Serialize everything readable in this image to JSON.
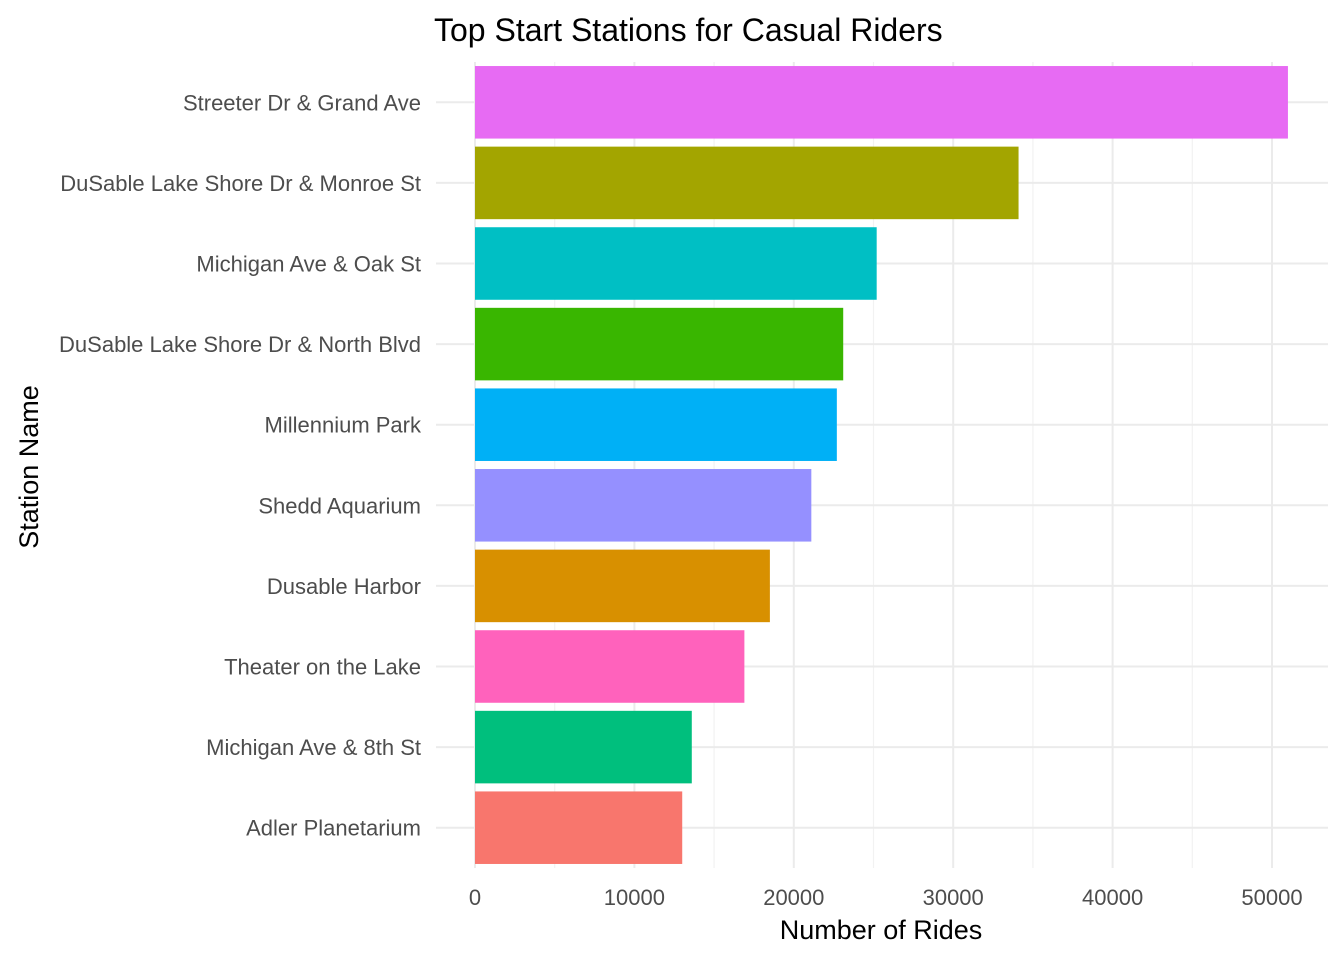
{
  "chart_data": {
    "type": "bar",
    "orientation": "horizontal",
    "title": "Top Start Stations for Casual Riders",
    "xlabel": "Number of Rides",
    "ylabel": "Station Name",
    "categories": [
      "Streeter Dr & Grand Ave",
      "DuSable Lake Shore Dr & Monroe St",
      "Michigan Ave & Oak St",
      "DuSable Lake Shore Dr & North Blvd",
      "Millennium Park",
      "Shedd Aquarium",
      "Dusable Harbor",
      "Theater on the Lake",
      "Michigan Ave & 8th St",
      "Adler Planetarium"
    ],
    "values": [
      51000,
      34100,
      25200,
      23100,
      22700,
      21100,
      18500,
      16900,
      13600,
      13000
    ],
    "colors": [
      "#E76BF3",
      "#A3A500",
      "#00BFC4",
      "#39B600",
      "#00B0F6",
      "#9590FF",
      "#D89000",
      "#FF62BC",
      "#00BF7D",
      "#F8766D"
    ],
    "xlim": [
      0,
      53000
    ],
    "xticks": [
      0,
      10000,
      20000,
      30000,
      40000,
      50000
    ],
    "xtick_labels": [
      "0",
      "10000",
      "20000",
      "30000",
      "40000",
      "50000"
    ],
    "grid": true,
    "legend": "none"
  }
}
